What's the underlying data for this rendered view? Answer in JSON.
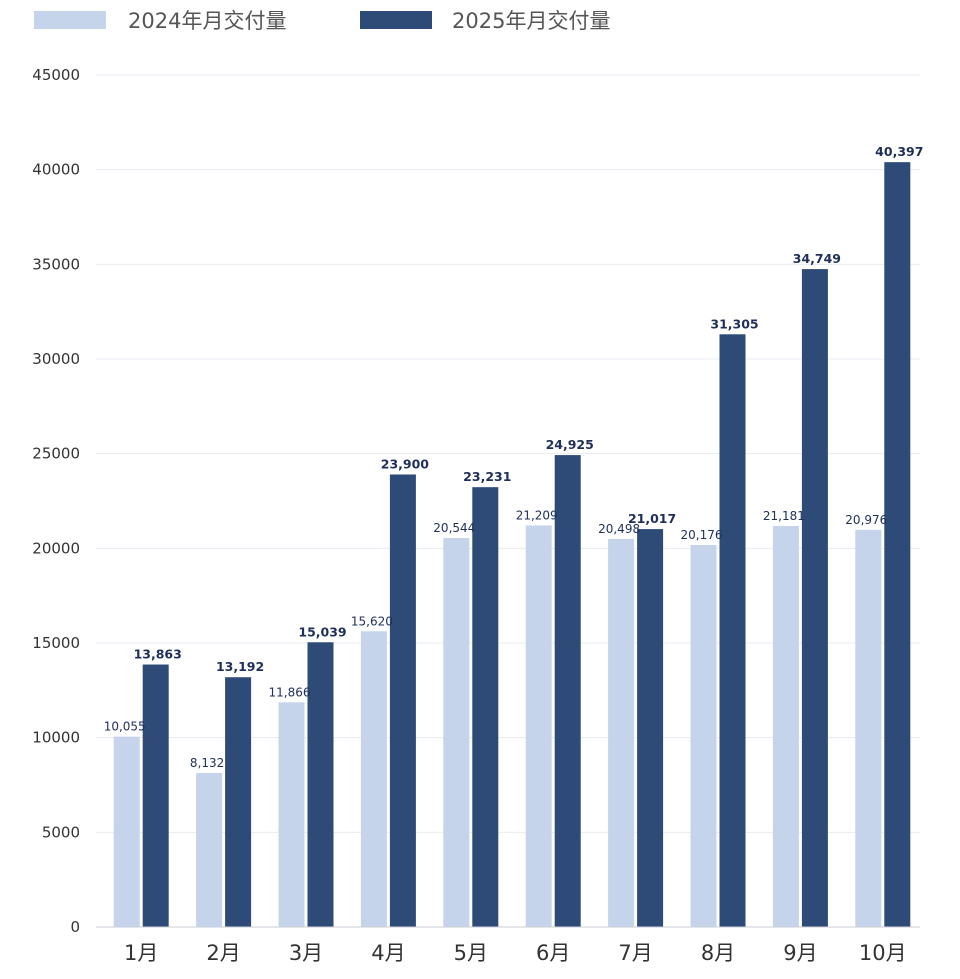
{
  "chart_data": {
    "type": "bar",
    "title": "",
    "xlabel": "",
    "ylabel": "",
    "categories": [
      "1月",
      "2月",
      "3月",
      "4月",
      "5月",
      "6月",
      "7月",
      "8月",
      "9月",
      "10月"
    ],
    "series": [
      {
        "name": "2024年月交付量",
        "color": "#c5d4ea",
        "values": [
          10055,
          8132,
          11866,
          15620,
          20544,
          21209,
          20498,
          20176,
          21181,
          20976
        ],
        "labels": [
          "10,055",
          "8,132",
          "11,866",
          "15,620",
          "20,544",
          "21,209",
          "20,498",
          "20,176",
          "21,181",
          "20,976"
        ]
      },
      {
        "name": "2025年月交付量",
        "color": "#2e4b78",
        "values": [
          13863,
          13192,
          15039,
          23900,
          23231,
          24925,
          21017,
          31305,
          34749,
          40397
        ],
        "labels": [
          "13,863",
          "13,192",
          "15,039",
          "23,900",
          "23,231",
          "24,925",
          "21,017",
          "31,305",
          "34,749",
          "40,397"
        ]
      }
    ],
    "ylim": [
      0,
      45000
    ],
    "yticks": [
      "0",
      "5000",
      "10000",
      "15000",
      "20000",
      "25000",
      "30000",
      "35000",
      "40000",
      "45000"
    ],
    "grid": true,
    "legend_position": "top-left"
  }
}
